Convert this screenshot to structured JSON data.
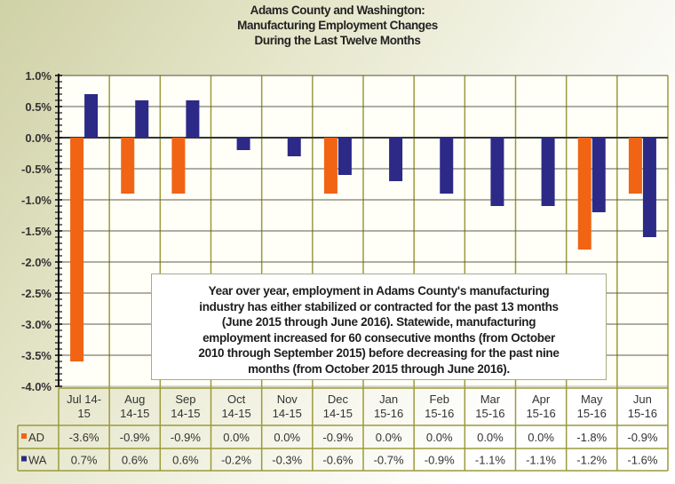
{
  "colors": {
    "AD": "#f06414",
    "WA": "#2c2a86",
    "grid": "#9c9a3a",
    "hgrid": "#5d5d4a",
    "plot_bg": "#fffff8"
  },
  "note_lines": [
    "Year over year, employment in Adams County's manufacturing",
    "industry has either stabilized or contracted for the past 13 months",
    "(June 2015 through June 2016). Statewide, manufacturing",
    "employment increased for 60 consecutive months (from October",
    "2010 through September 2015) before decreasing for the past nine",
    "months (from October 2015 through June 2016)."
  ],
  "chart_data": {
    "type": "bar",
    "title_lines": [
      "Adams County and Washington:",
      "Manufacturing Employment Changes",
      "During the Last Twelve Months"
    ],
    "xlabel": "",
    "ylabel": "",
    "ylim": [
      -4.0,
      1.0
    ],
    "yticks": [
      1.0,
      0.5,
      0.0,
      -0.5,
      -1.0,
      -1.5,
      -2.0,
      -2.5,
      -3.0,
      -3.5,
      -4.0
    ],
    "ytick_labels": [
      "1.0%",
      "0.5%",
      "0.0%",
      "-0.5%",
      "-1.0%",
      "-1.5%",
      "-2.0%",
      "-2.5%",
      "-3.0%",
      "-3.5%",
      "-4.0%"
    ],
    "grid": true,
    "legend_placement": "data-table",
    "categories": [
      [
        "Jul 14-",
        "15"
      ],
      [
        "Aug",
        "14-15"
      ],
      [
        "Sep",
        "14-15"
      ],
      [
        "Oct",
        "14-15"
      ],
      [
        "Nov",
        "14-15"
      ],
      [
        "Dec",
        "14-15"
      ],
      [
        "Jan",
        "15-16"
      ],
      [
        "Feb",
        "15-16"
      ],
      [
        "Mar",
        "15-16"
      ],
      [
        "Apr",
        "15-16"
      ],
      [
        "May",
        "15-16"
      ],
      [
        "Jun",
        "15-16"
      ]
    ],
    "series": [
      {
        "name": "AD",
        "values": [
          -3.6,
          -0.9,
          -0.9,
          0.0,
          0.0,
          -0.9,
          0.0,
          0.0,
          0.0,
          0.0,
          -1.8,
          -0.9
        ],
        "labels": [
          "-3.6%",
          "-0.9%",
          "-0.9%",
          "0.0%",
          "0.0%",
          "-0.9%",
          "0.0%",
          "0.0%",
          "0.0%",
          "0.0%",
          "-1.8%",
          "-0.9%"
        ]
      },
      {
        "name": "WA",
        "values": [
          0.7,
          0.6,
          0.6,
          -0.2,
          -0.3,
          -0.6,
          -0.7,
          -0.9,
          -1.1,
          -1.1,
          -1.2,
          -1.6
        ],
        "labels": [
          "0.7%",
          "0.6%",
          "0.6%",
          "-0.2%",
          "-0.3%",
          "-0.6%",
          "-0.7%",
          "-0.9%",
          "-1.1%",
          "-1.1%",
          "-1.2%",
          "-1.6%"
        ]
      }
    ]
  }
}
